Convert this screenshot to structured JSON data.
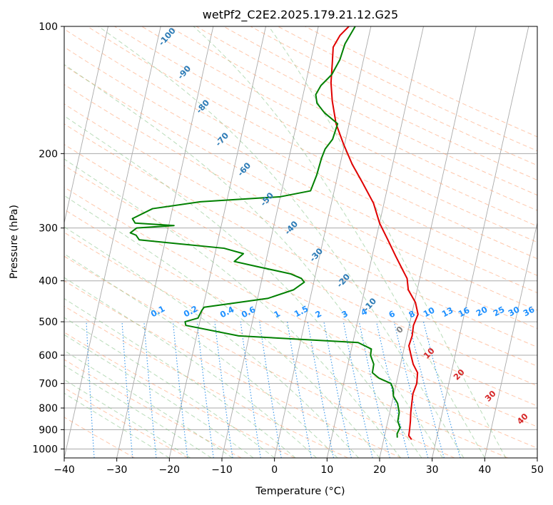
{
  "chart_data": {
    "type": "line",
    "subtype": "skew-T log-p diagram",
    "title": "wetPf2_C2E2.2025.179.21.12.G25",
    "xlabel": "Temperature (°C)",
    "ylabel": "Pressure (hPa)",
    "xlim": [
      -40,
      50
    ],
    "ylim": [
      1050,
      100
    ],
    "yscale": "log",
    "xticks": [
      -40,
      -30,
      -20,
      -10,
      0,
      10,
      20,
      30,
      40,
      50
    ],
    "yticks": [
      100,
      200,
      300,
      400,
      500,
      600,
      700,
      800,
      900,
      1000
    ],
    "grid": true,
    "colors": {
      "temperature": "#e00000",
      "dewpoint": "#008000",
      "isotherm": "#aaaaaa",
      "dry_adiabat": "#ff9966",
      "moist_adiabat": "#7fbf7f",
      "mixing_ratio": "#1e88e5",
      "isobar": "#aaaaaa"
    },
    "series": [
      {
        "id": "temperature",
        "points": [
          [
            25.3,
            950
          ],
          [
            24.6,
            930
          ],
          [
            24.5,
            900
          ],
          [
            24.3,
            860
          ],
          [
            24.0,
            820
          ],
          [
            23.8,
            780
          ],
          [
            23.6,
            740
          ],
          [
            23.9,
            700
          ],
          [
            23.6,
            660
          ],
          [
            22.4,
            630
          ],
          [
            21.6,
            600
          ],
          [
            20.8,
            570
          ],
          [
            21.0,
            540
          ],
          [
            20.8,
            510
          ],
          [
            21.2,
            480
          ],
          [
            20.2,
            450
          ],
          [
            18.3,
            420
          ],
          [
            17.6,
            395
          ],
          [
            16.6,
            380
          ],
          [
            14.5,
            350
          ],
          [
            12.3,
            320
          ],
          [
            10.0,
            292
          ],
          [
            8.0,
            262
          ],
          [
            5.0,
            234
          ],
          [
            2.3,
            212
          ],
          [
            -0.2,
            190
          ],
          [
            -2.5,
            170
          ],
          [
            -4.2,
            150
          ],
          [
            -5.2,
            136
          ],
          [
            -5.8,
            122
          ],
          [
            -6.3,
            112
          ],
          [
            -5.5,
            105
          ],
          [
            -4.2,
            100
          ]
        ]
      },
      {
        "id": "dewpoint",
        "points": [
          [
            22.5,
            940
          ],
          [
            22.3,
            920
          ],
          [
            22.6,
            890
          ],
          [
            21.9,
            860
          ],
          [
            21.8,
            820
          ],
          [
            21.1,
            780
          ],
          [
            20.0,
            750
          ],
          [
            19.6,
            720
          ],
          [
            19.0,
            700
          ],
          [
            16.5,
            680
          ],
          [
            15.0,
            660
          ],
          [
            14.9,
            630
          ],
          [
            13.9,
            600
          ],
          [
            13.8,
            580
          ],
          [
            11.0,
            560
          ],
          [
            -12.0,
            540
          ],
          [
            -22.5,
            510
          ],
          [
            -22.8,
            500
          ],
          [
            -20.5,
            490
          ],
          [
            -20.1,
            470
          ],
          [
            -19.8,
            462
          ],
          [
            -8.0,
            440
          ],
          [
            -3.5,
            420
          ],
          [
            -1.8,
            403
          ],
          [
            -2.5,
            395
          ],
          [
            -4.8,
            385
          ],
          [
            -11.5,
            370
          ],
          [
            -16.0,
            360
          ],
          [
            -14.6,
            345
          ],
          [
            -18.5,
            335
          ],
          [
            -35.0,
            320
          ],
          [
            -35.8,
            312
          ],
          [
            -37.0,
            308
          ],
          [
            -36.0,
            300
          ],
          [
            -29.0,
            296
          ],
          [
            -36.5,
            292
          ],
          [
            -37.2,
            285
          ],
          [
            -33.8,
            270
          ],
          [
            -25.0,
            260
          ],
          [
            -10.0,
            253
          ],
          [
            -4.5,
            245
          ],
          [
            -4.0,
            225
          ],
          [
            -3.8,
            205
          ],
          [
            -3.5,
            195
          ],
          [
            -2.5,
            185
          ],
          [
            -2.2,
            170
          ],
          [
            -5.2,
            160
          ],
          [
            -7.0,
            152
          ],
          [
            -7.6,
            145
          ],
          [
            -7.0,
            138
          ],
          [
            -5.4,
            130
          ],
          [
            -4.5,
            120
          ],
          [
            -4.2,
            110
          ],
          [
            -3.0,
            100
          ]
        ]
      }
    ],
    "dry_adiabat_labels": [
      "-100",
      "-90",
      "-80",
      "-70",
      "-60",
      "-50",
      "-40",
      "-30",
      "-20",
      "-10"
    ],
    "mixing_ratio_labels": [
      "0.1",
      "0.2",
      "0.4",
      "0.6",
      "1",
      "1.5",
      "2",
      "3",
      "4",
      "6",
      "8",
      "10",
      "13",
      "16",
      "20",
      "25",
      "30",
      "36"
    ],
    "moist_adiabat_labels": [
      "0",
      "10",
      "20",
      "30",
      "40"
    ],
    "tick_labels_x": [
      "−40",
      "−30",
      "−20",
      "−10",
      "0",
      "10",
      "20",
      "30",
      "40",
      "50"
    ],
    "tick_labels_y": [
      "100",
      "200",
      "300",
      "400",
      "500",
      "600",
      "700",
      "800",
      "900",
      "1000"
    ]
  }
}
